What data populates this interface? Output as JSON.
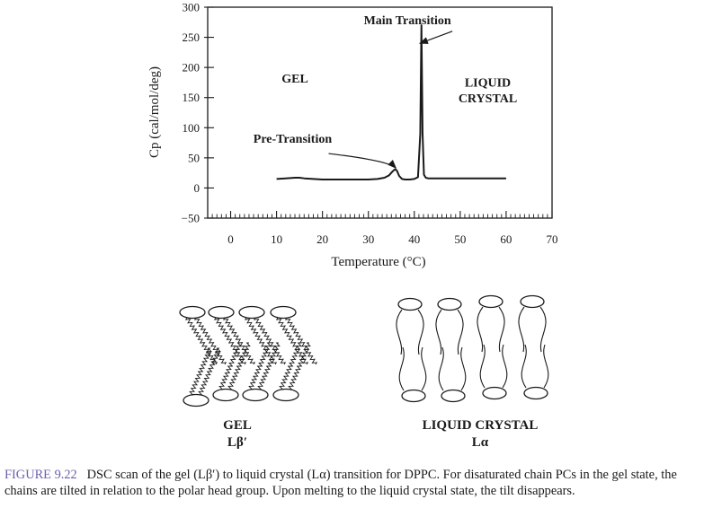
{
  "chart_data": {
    "type": "line",
    "xlabel": "Temperature (°C)",
    "ylabel": "Cp (cal/mol/deg)",
    "xlim": [
      -5,
      70
    ],
    "ylim": [
      -50,
      300
    ],
    "xticks": [
      0,
      10,
      20,
      30,
      40,
      50,
      60,
      70
    ],
    "yticks": [
      300,
      250,
      200,
      150,
      100,
      50,
      0,
      -50
    ],
    "grid": false,
    "series": [
      {
        "x": [
          10,
          12,
          14,
          15,
          16,
          18,
          20,
          22,
          25,
          28,
          30,
          32,
          33.5,
          34.5,
          35.2,
          35.8,
          36.2,
          36.7,
          37.3,
          38,
          39,
          40,
          40.8,
          41.3,
          41.55,
          41.8,
          42.1,
          42.5,
          43,
          45,
          50,
          55,
          60
        ],
        "y": [
          15,
          16,
          17,
          17,
          16,
          15,
          14,
          14,
          14,
          14,
          14,
          15,
          17,
          21,
          27,
          31,
          29,
          20,
          15,
          14,
          14,
          15,
          18,
          90,
          270,
          90,
          22,
          17,
          16,
          16,
          16,
          16,
          16
        ]
      }
    ],
    "annotations": [
      {
        "text": "Main Transition",
        "x": 38.5,
        "y": 272,
        "arrow_to": [
          41.2,
          240
        ]
      },
      {
        "text": "GEL",
        "x": 14,
        "y": 175
      },
      {
        "text": "LIQUID",
        "x": 56,
        "y": 168
      },
      {
        "text": "CRYSTAL",
        "x": 56,
        "y": 142
      },
      {
        "text": "Pre-Transition",
        "x": 13.5,
        "y": 75,
        "arrow_to": [
          36,
          33
        ]
      }
    ]
  },
  "illustrations": {
    "gel": {
      "line1": "GEL",
      "line2": "Lβ′"
    },
    "liquid_crystal": {
      "line1": "LIQUID CRYSTAL",
      "line2": "Lα"
    }
  },
  "caption": {
    "label": "FIGURE 9.22",
    "text": "DSC scan of the gel (Lβ′) to liquid crystal (Lα) transition for DPPC. For disaturated chain PCs in the gel state, the chains are tilted in relation to the polar head group. Upon melting to the liquid crystal state, the tilt disappears."
  },
  "colors": {
    "ink": "#1a1a1a",
    "figure_label": "#6b62ad"
  }
}
